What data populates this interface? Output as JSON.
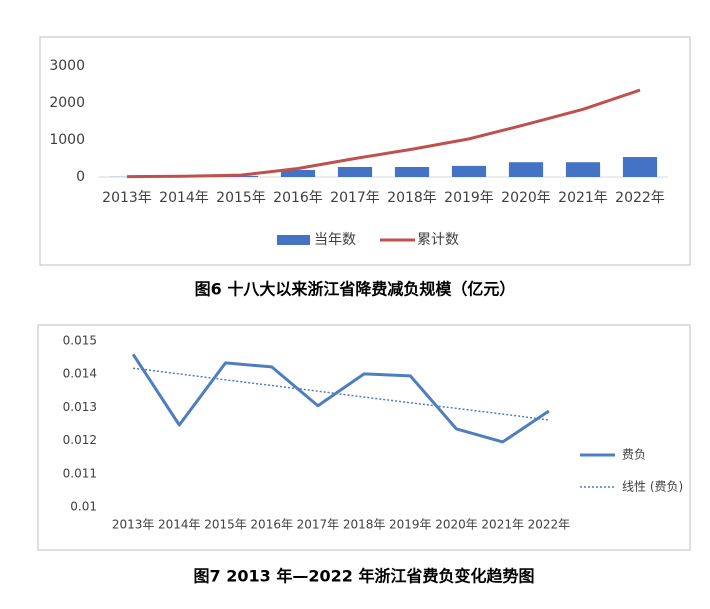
{
  "chart_data": [
    {
      "type": "combo",
      "title": "图6  十八大以来浙江省降费减负规模（亿元）",
      "categories": [
        "2013年",
        "2014年",
        "2015年",
        "2016年",
        "2017年",
        "2018年",
        "2019年",
        "2020年",
        "2021年",
        "2022年"
      ],
      "series": [
        {
          "name": "当年数",
          "type": "bar",
          "color": "#4472c4",
          "values": [
            5,
            10,
            30,
            190,
            270,
            270,
            300,
            400,
            400,
            540
          ]
        },
        {
          "name": "累计数",
          "type": "line",
          "color": "#c0504d",
          "values": [
            10,
            20,
            50,
            230,
            500,
            750,
            1030,
            1420,
            1830,
            2350
          ]
        }
      ],
      "ylim": [
        0,
        3000
      ],
      "yticks": [
        0,
        1000,
        2000,
        3000
      ],
      "grid": false,
      "legend": "bottom"
    },
    {
      "type": "line",
      "title": "图7  2013 年—2022 年浙江省费负变化趋势图",
      "categories": [
        "2013年",
        "2014年",
        "2015年",
        "2016年",
        "2017年",
        "2018年",
        "2019年",
        "2020年",
        "2021年",
        "2022年"
      ],
      "series": [
        {
          "name": "费负",
          "color": "#4f7ec0",
          "values": [
            0.0146,
            0.01247,
            0.01434,
            0.01422,
            0.01305,
            0.01401,
            0.01395,
            0.01235,
            0.01196,
            0.01289
          ]
        },
        {
          "name": "线性 (费负)",
          "color": "#4f7ec0",
          "dash": "dotted",
          "values": [
            0.01418,
            0.01401,
            0.01383,
            0.01366,
            0.01349,
            0.01331,
            0.01314,
            0.01297,
            0.0128,
            0.01262
          ]
        }
      ],
      "ylim": [
        0.01,
        0.015
      ],
      "yticks": [
        0.01,
        0.011,
        0.012,
        0.013,
        0.014,
        0.015
      ],
      "grid": false,
      "legend": "right"
    }
  ]
}
